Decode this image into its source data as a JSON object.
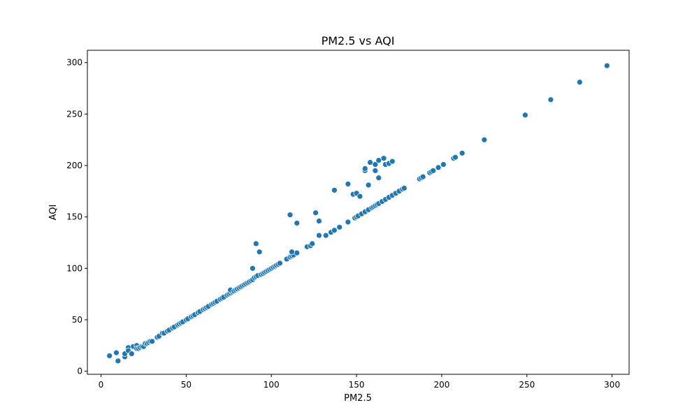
{
  "chart_data": {
    "type": "scatter",
    "title": "PM2.5 vs AQI",
    "xlabel": "PM2.5",
    "ylabel": "AQI",
    "xlim": [
      -8,
      310
    ],
    "ylim": [
      -3,
      312
    ],
    "xticks": [
      0,
      50,
      100,
      150,
      200,
      250,
      300
    ],
    "yticks": [
      0,
      50,
      100,
      150,
      200,
      250,
      300
    ],
    "grid": false,
    "marker_color": "#1f77b4",
    "points": [
      [
        5,
        15
      ],
      [
        9,
        18
      ],
      [
        10,
        10
      ],
      [
        14,
        14
      ],
      [
        14,
        17
      ],
      [
        16,
        23
      ],
      [
        16,
        20
      ],
      [
        18,
        17
      ],
      [
        19,
        24
      ],
      [
        21,
        25
      ],
      [
        21,
        22
      ],
      [
        22,
        22
      ],
      [
        23,
        23
      ],
      [
        24,
        24
      ],
      [
        25,
        24
      ],
      [
        26,
        27
      ],
      [
        27,
        27
      ],
      [
        28,
        28
      ],
      [
        29,
        29
      ],
      [
        30,
        29
      ],
      [
        33,
        33
      ],
      [
        34,
        34
      ],
      [
        36,
        37
      ],
      [
        37,
        37
      ],
      [
        39,
        39
      ],
      [
        40,
        40
      ],
      [
        42,
        42
      ],
      [
        43,
        43
      ],
      [
        45,
        45
      ],
      [
        46,
        46
      ],
      [
        47,
        47
      ],
      [
        48,
        48
      ],
      [
        50,
        50
      ],
      [
        51,
        51
      ],
      [
        53,
        53
      ],
      [
        54,
        54
      ],
      [
        55,
        55
      ],
      [
        57,
        57
      ],
      [
        58,
        58
      ],
      [
        60,
        60
      ],
      [
        61,
        61
      ],
      [
        62,
        62
      ],
      [
        63,
        63
      ],
      [
        65,
        65
      ],
      [
        66,
        66
      ],
      [
        67,
        67
      ],
      [
        68,
        68
      ],
      [
        70,
        70
      ],
      [
        71,
        71
      ],
      [
        72,
        72
      ],
      [
        74,
        74
      ],
      [
        75,
        75
      ],
      [
        76,
        76
      ],
      [
        77,
        77
      ],
      [
        76,
        79
      ],
      [
        78,
        78
      ],
      [
        79,
        79
      ],
      [
        80,
        80
      ],
      [
        81,
        81
      ],
      [
        82,
        82
      ],
      [
        83,
        83
      ],
      [
        84,
        84
      ],
      [
        85,
        85
      ],
      [
        86,
        86
      ],
      [
        87,
        87
      ],
      [
        88,
        88
      ],
      [
        89,
        89
      ],
      [
        90,
        91
      ],
      [
        91,
        92
      ],
      [
        92,
        93
      ],
      [
        94,
        94
      ],
      [
        95,
        95
      ],
      [
        96,
        96
      ],
      [
        97,
        97
      ],
      [
        98,
        98
      ],
      [
        99,
        99
      ],
      [
        100,
        100
      ],
      [
        101,
        101
      ],
      [
        102,
        102
      ],
      [
        103,
        103
      ],
      [
        104,
        104
      ],
      [
        105,
        105
      ],
      [
        109,
        109
      ],
      [
        111,
        111
      ],
      [
        112,
        112
      ],
      [
        113,
        113
      ],
      [
        115,
        115
      ],
      [
        121,
        121
      ],
      [
        123,
        122
      ],
      [
        124,
        124
      ],
      [
        128,
        132
      ],
      [
        132,
        132
      ],
      [
        135,
        135
      ],
      [
        137,
        137
      ],
      [
        140,
        140
      ],
      [
        145,
        145
      ],
      [
        149,
        149
      ],
      [
        150,
        150
      ],
      [
        151,
        151
      ],
      [
        153,
        153
      ],
      [
        155,
        155
      ],
      [
        157,
        157
      ],
      [
        159,
        159
      ],
      [
        160,
        160
      ],
      [
        161,
        161
      ],
      [
        162,
        162
      ],
      [
        163,
        163
      ],
      [
        165,
        165
      ],
      [
        167,
        167
      ],
      [
        169,
        169
      ],
      [
        171,
        171
      ],
      [
        173,
        173
      ],
      [
        175,
        175
      ],
      [
        177,
        177
      ],
      [
        178,
        178
      ],
      [
        187,
        187
      ],
      [
        188,
        188
      ],
      [
        189,
        189
      ],
      [
        193,
        193
      ],
      [
        194,
        194
      ],
      [
        195,
        195
      ],
      [
        198,
        198
      ],
      [
        201,
        201
      ],
      [
        207,
        207
      ],
      [
        208,
        208
      ],
      [
        212,
        212
      ],
      [
        225,
        225
      ],
      [
        249,
        249
      ],
      [
        264,
        264
      ],
      [
        281,
        281
      ],
      [
        297,
        297
      ],
      [
        89,
        100
      ],
      [
        91,
        124
      ],
      [
        93,
        116
      ],
      [
        111,
        152
      ],
      [
        112,
        116
      ],
      [
        115,
        144
      ],
      [
        126,
        154
      ],
      [
        128,
        146
      ],
      [
        137,
        176
      ],
      [
        145,
        182
      ],
      [
        148,
        172
      ],
      [
        150,
        173
      ],
      [
        152,
        170
      ],
      [
        155,
        195
      ],
      [
        155,
        197
      ],
      [
        157,
        181
      ],
      [
        158,
        203
      ],
      [
        161,
        195
      ],
      [
        161,
        201
      ],
      [
        163,
        188
      ],
      [
        163,
        205
      ],
      [
        166,
        207
      ],
      [
        167,
        201
      ],
      [
        169,
        202
      ],
      [
        171,
        204
      ]
    ]
  }
}
